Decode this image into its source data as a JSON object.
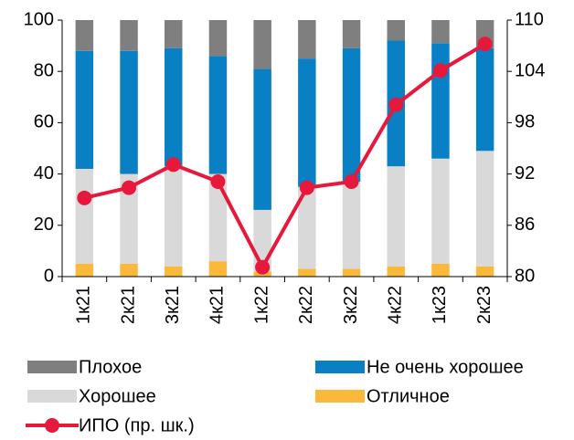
{
  "chart_data": {
    "type": "bar",
    "categories": [
      "1к21",
      "2к21",
      "3к21",
      "4к21",
      "1к22",
      "2к22",
      "3к22",
      "4к22",
      "1к23",
      "2к23"
    ],
    "series": [
      {
        "name": "Плохое",
        "color": "#7f7f7f",
        "values": [
          12,
          12,
          11,
          14,
          19,
          15,
          11,
          8,
          9,
          11
        ]
      },
      {
        "name": "Не очень хорошее",
        "color": "#0a80c4",
        "values": [
          46,
          48,
          46,
          46,
          55,
          50,
          52,
          49,
          45,
          40
        ]
      },
      {
        "name": "Хорошее",
        "color": "#d9d9d9",
        "values": [
          37,
          35,
          39,
          34,
          24,
          32,
          34,
          39,
          41,
          45
        ]
      },
      {
        "name": "Отличное",
        "color": "#fbb93c",
        "values": [
          5,
          5,
          4,
          6,
          2,
          3,
          3,
          4,
          5,
          4
        ]
      },
      {
        "name": "ИПО (пр. шк.)",
        "color": "#e6183c",
        "type": "line",
        "axis": "y2",
        "values": [
          89.2,
          90.4,
          93.1,
          91.1,
          81.1,
          90.4,
          91.1,
          100.1,
          104.1,
          107.2
        ]
      }
    ],
    "stacked": true,
    "ylim": [
      0,
      100
    ],
    "yticks": [
      0,
      20,
      40,
      60,
      80,
      100
    ],
    "y2lim": [
      80,
      110
    ],
    "y2ticks": [
      80,
      86,
      92,
      98,
      104,
      110
    ]
  }
}
